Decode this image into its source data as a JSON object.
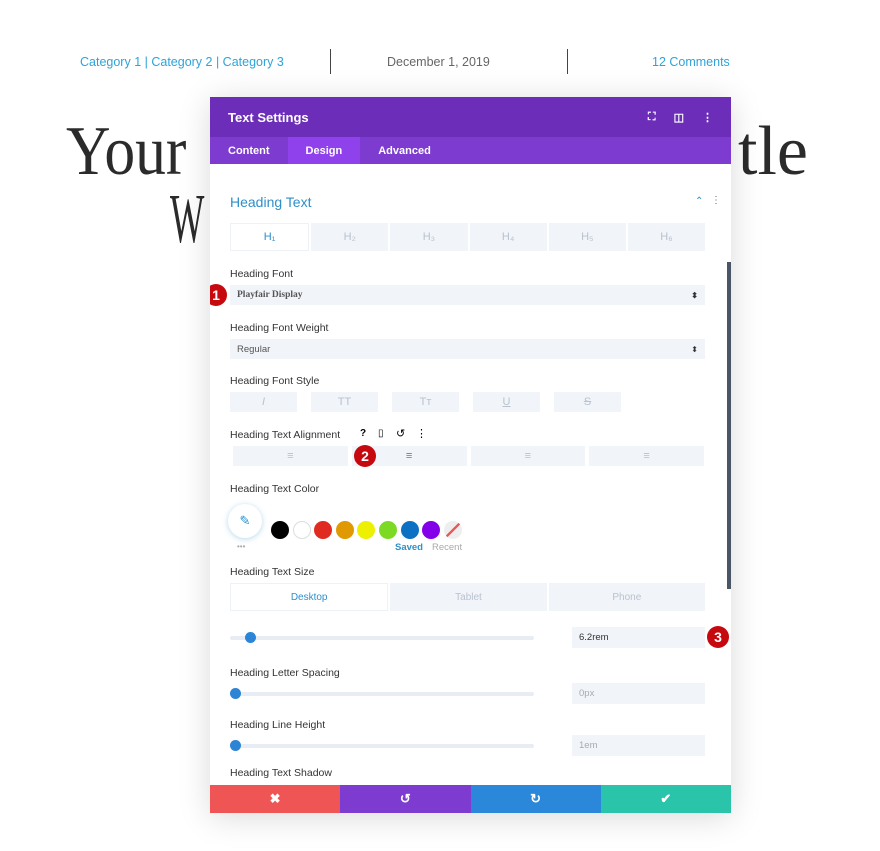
{
  "post_meta": {
    "categories": "Category 1 | Category 2 | Category 3",
    "date": "December 1, 2019",
    "comments": "12 Comments"
  },
  "background_title": {
    "left": "Your",
    "right": "tle",
    "line2": "W"
  },
  "modal": {
    "title": "Text Settings",
    "header_icons": [
      "fullscreen-icon",
      "split-view-icon",
      "more-icon"
    ],
    "tabs": [
      {
        "label": "Content"
      },
      {
        "label": "Design",
        "active": true
      },
      {
        "label": "Advanced"
      }
    ],
    "section_title": "Heading Text",
    "heading_levels": [
      "H₁",
      "H₂",
      "H₃",
      "H₄",
      "H₅",
      "H₆"
    ],
    "heading_font": {
      "label": "Heading Font",
      "value": "Playfair Display"
    },
    "font_weight": {
      "label": "Heading Font Weight",
      "value": "Regular"
    },
    "font_style": {
      "label": "Heading Font Style",
      "options": [
        "I",
        "TT",
        "Tт",
        "U",
        "S"
      ]
    },
    "alignment": {
      "label": "Heading Text Alignment",
      "options": [
        "left",
        "center",
        "right",
        "justify"
      ],
      "selected": "center"
    },
    "color": {
      "label": "Heading Text Color",
      "swatches": [
        "#000000",
        "#ffffff",
        "#e02b20",
        "#e09900",
        "#edf000",
        "#7cda24",
        "#0c71c3",
        "#8300e9"
      ],
      "saved": "Saved",
      "recent": "Recent",
      "more": "•••"
    },
    "size": {
      "label": "Heading Text Size",
      "devices": [
        "Desktop",
        "Tablet",
        "Phone"
      ],
      "value": "6.2rem",
      "slider": 0.05
    },
    "letter_spacing": {
      "label": "Heading Letter Spacing",
      "value": "0px",
      "slider": 0
    },
    "line_height": {
      "label": "Heading Line Height",
      "value": "1em",
      "slider": 0
    },
    "text_shadow": {
      "label": "Heading Text Shadow"
    },
    "badges": [
      "1",
      "2",
      "3"
    ],
    "footer": {
      "cancel": "✖",
      "undo": "↺",
      "redo": "↻",
      "save": "✔"
    },
    "colors": {
      "header": "#6c2eb9",
      "tabs": "#7d3bcf",
      "accent": "#2e8fc9",
      "cancel": "#ef5555",
      "undo": "#7d3bcf",
      "redo": "#2b87da",
      "save": "#29c4a9"
    }
  }
}
